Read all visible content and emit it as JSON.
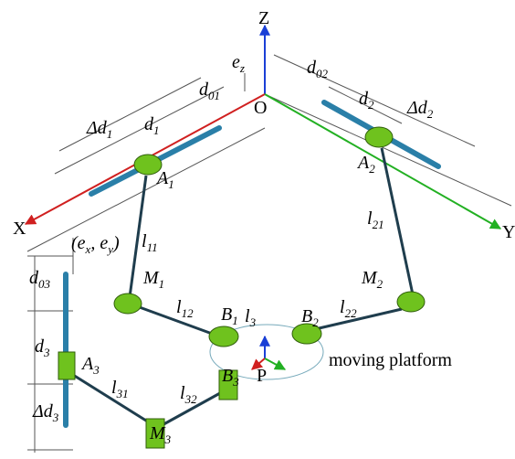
{
  "labels": [
    {
      "parts": [
        "Z"
      ]
    },
    {
      "parts": [
        "e",
        "z"
      ]
    },
    {
      "parts": [
        "d",
        "02"
      ]
    },
    {
      "parts": [
        "d",
        "01"
      ]
    },
    {
      "parts": [
        "O"
      ]
    },
    {
      "parts": [
        "d",
        "2"
      ]
    },
    {
      "parts": [
        "Δd",
        "2"
      ]
    },
    {
      "parts": [
        "Δd",
        "1"
      ]
    },
    {
      "parts": [
        "d",
        "1"
      ]
    },
    {
      "parts": [
        "A",
        "1"
      ]
    },
    {
      "parts": [
        "A",
        "2"
      ]
    },
    {
      "parts": [
        "X"
      ]
    },
    {
      "parts": [
        "Y"
      ]
    },
    {
      "parts": [
        "(e",
        "x",
        ", e",
        "y",
        ")"
      ]
    },
    {
      "parts": [
        "l",
        "11"
      ]
    },
    {
      "parts": [
        "l",
        "21"
      ]
    },
    {
      "parts": [
        "d",
        "03"
      ]
    },
    {
      "parts": [
        "M",
        "1"
      ]
    },
    {
      "parts": [
        "M",
        "2"
      ]
    },
    {
      "parts": [
        "l",
        "12"
      ]
    },
    {
      "parts": [
        "B",
        "1"
      ]
    },
    {
      "parts": [
        "l",
        "3"
      ]
    },
    {
      "parts": [
        "B",
        "2"
      ]
    },
    {
      "parts": [
        "l",
        "22"
      ]
    },
    {
      "parts": [
        "d",
        "3"
      ]
    },
    {
      "parts": [
        "moving platform"
      ]
    },
    {
      "parts": [
        "A",
        "3"
      ]
    },
    {
      "parts": [
        "P"
      ]
    },
    {
      "parts": [
        "B",
        "3"
      ]
    },
    {
      "parts": [
        "l",
        "31"
      ]
    },
    {
      "parts": [
        "l",
        "32"
      ]
    },
    {
      "parts": [
        "Δd",
        "3"
      ]
    },
    {
      "parts": [
        "M",
        "3"
      ]
    }
  ]
}
